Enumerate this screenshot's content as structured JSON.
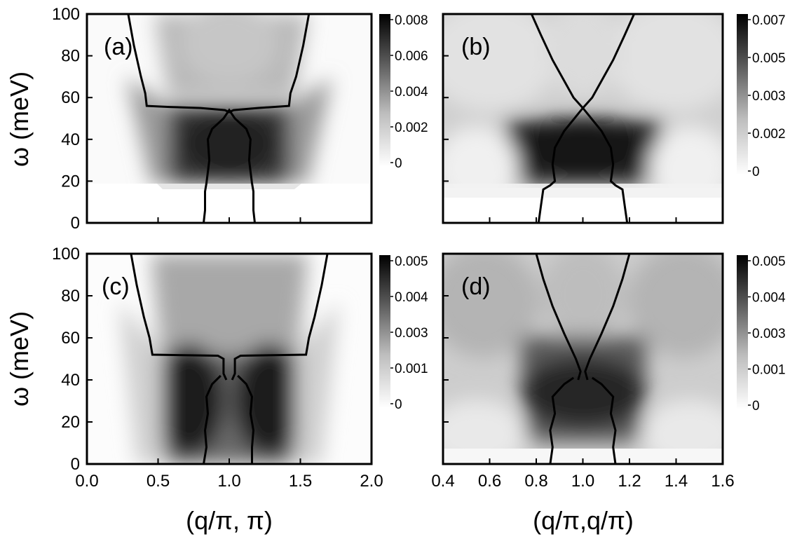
{
  "figure": {
    "ylabel": "ω (meV)",
    "xlabel_left": "(q/π, π)",
    "xlabel_right": "(q/π,q/π)"
  },
  "chart_data": [
    {
      "type": "heatmap",
      "panel_label": "(a)",
      "xlabel": "",
      "ylabel": "ω (meV)",
      "xlim": [
        0.0,
        2.0
      ],
      "ylim": [
        0,
        100
      ],
      "x_ticks": [
        "0.0",
        "0.5",
        "1.0",
        "1.5",
        "2.0"
      ],
      "y_ticks": [
        "0",
        "20",
        "40",
        "60",
        "80",
        "100"
      ],
      "colorbar": {
        "range": [
          0,
          0.008
        ],
        "ticks": [
          "0",
          "0.002",
          "0.004",
          "0.006",
          "0.008"
        ]
      },
      "contour_outer": [
        [
          0.29,
          100
        ],
        [
          0.33,
          85
        ],
        [
          0.38,
          70
        ],
        [
          0.41,
          62
        ],
        [
          0.42,
          56
        ],
        [
          0.58,
          55.5
        ],
        [
          0.8,
          55
        ],
        [
          0.97,
          54
        ],
        [
          1.0,
          53
        ],
        [
          1.03,
          54
        ],
        [
          1.2,
          55
        ],
        [
          1.42,
          56
        ],
        [
          1.43,
          62
        ],
        [
          1.47,
          70
        ],
        [
          1.52,
          85
        ],
        [
          1.56,
          100
        ]
      ],
      "contour_inner": [
        [
          0.82,
          0
        ],
        [
          0.83,
          6
        ],
        [
          0.83,
          15
        ],
        [
          0.84,
          19
        ],
        [
          0.86,
          30
        ],
        [
          0.85,
          40
        ],
        [
          0.88,
          45
        ],
        [
          0.96,
          50
        ],
        [
          1.0,
          54
        ],
        [
          1.04,
          50
        ],
        [
          1.12,
          45
        ],
        [
          1.15,
          40
        ],
        [
          1.14,
          30
        ],
        [
          1.16,
          19
        ],
        [
          1.17,
          15
        ],
        [
          1.17,
          6
        ],
        [
          1.18,
          0
        ]
      ]
    },
    {
      "type": "heatmap",
      "panel_label": "(b)",
      "xlabel": "",
      "ylabel": "",
      "xlim": [
        0.4,
        1.6
      ],
      "ylim": [
        0,
        100
      ],
      "x_ticks": [],
      "y_ticks": [],
      "colorbar": {
        "range": [
          0,
          0.007
        ],
        "ticks": [
          "0",
          "0.002",
          "0.003",
          "0.005",
          "0.007"
        ]
      },
      "contour_outer": [
        [
          0.78,
          100
        ],
        [
          0.82,
          90
        ],
        [
          0.87,
          78
        ],
        [
          0.92,
          68
        ],
        [
          0.96,
          60
        ],
        [
          1.0,
          55
        ],
        [
          1.04,
          60
        ],
        [
          1.08,
          68
        ],
        [
          1.13,
          78
        ],
        [
          1.18,
          90
        ],
        [
          1.22,
          100
        ]
      ],
      "contour_inner": [
        [
          0.81,
          0
        ],
        [
          0.82,
          8
        ],
        [
          0.83,
          16
        ],
        [
          0.86,
          18
        ],
        [
          0.88,
          20
        ],
        [
          0.87,
          28
        ],
        [
          0.88,
          36
        ],
        [
          0.92,
          44
        ],
        [
          1.0,
          55
        ],
        [
          1.08,
          44
        ],
        [
          1.12,
          36
        ],
        [
          1.13,
          28
        ],
        [
          1.12,
          20
        ],
        [
          1.14,
          18
        ],
        [
          1.17,
          16
        ],
        [
          1.18,
          8
        ],
        [
          1.19,
          0
        ]
      ]
    },
    {
      "type": "heatmap",
      "panel_label": "(c)",
      "xlabel": "(q/π, π)",
      "ylabel": "ω (meV)",
      "xlim": [
        0.0,
        2.0
      ],
      "ylim": [
        0,
        100
      ],
      "x_ticks": [
        "0.0",
        "0.5",
        "1.0",
        "1.5",
        "2.0"
      ],
      "y_ticks": [
        "0",
        "20",
        "40",
        "60",
        "80",
        "100"
      ],
      "colorbar": {
        "range": [
          0,
          0.005
        ],
        "ticks": [
          "0",
          "0.001",
          "0.003",
          "0.004",
          "0.005"
        ]
      },
      "contour_outer": [
        [
          0.31,
          100
        ],
        [
          0.35,
          85
        ],
        [
          0.4,
          70
        ],
        [
          0.44,
          60
        ],
        [
          0.46,
          52
        ],
        [
          0.92,
          51.5
        ],
        [
          0.96,
          50
        ],
        [
          0.96,
          43
        ],
        [
          0.98,
          40
        ]
      ],
      "contour_outer_right": [
        [
          1.69,
          100
        ],
        [
          1.65,
          85
        ],
        [
          1.6,
          70
        ],
        [
          1.56,
          60
        ],
        [
          1.54,
          52
        ],
        [
          1.08,
          51.5
        ],
        [
          1.04,
          50
        ],
        [
          1.04,
          43
        ],
        [
          1.02,
          40
        ]
      ],
      "contour_inner": [
        [
          0.82,
          0
        ],
        [
          0.84,
          8
        ],
        [
          0.83,
          16
        ],
        [
          0.85,
          24
        ],
        [
          0.84,
          32
        ],
        [
          0.88,
          38
        ],
        [
          0.94,
          42
        ]
      ],
      "contour_inner_right": [
        [
          1.16,
          0
        ],
        [
          1.16,
          8
        ],
        [
          1.17,
          16
        ],
        [
          1.15,
          24
        ],
        [
          1.16,
          32
        ],
        [
          1.12,
          38
        ],
        [
          1.06,
          42
        ]
      ]
    },
    {
      "type": "heatmap",
      "panel_label": "(d)",
      "xlabel": "(q/π,q/π)",
      "ylabel": "",
      "xlim": [
        0.4,
        1.6
      ],
      "ylim": [
        0,
        100
      ],
      "x_ticks": [
        "0.4",
        "0.6",
        "0.8",
        "1.0",
        "1.2",
        "1.4",
        "1.6"
      ],
      "y_ticks": [],
      "colorbar": {
        "range": [
          0,
          0.005
        ],
        "ticks": [
          "0",
          "0.001",
          "0.003",
          "0.004",
          "0.005"
        ]
      },
      "contour_outer": [
        [
          0.8,
          100
        ],
        [
          0.83,
          88
        ],
        [
          0.87,
          75
        ],
        [
          0.92,
          62
        ],
        [
          0.97,
          50
        ],
        [
          0.99,
          44
        ],
        [
          0.98,
          40
        ]
      ],
      "contour_outer_right": [
        [
          1.2,
          100
        ],
        [
          1.17,
          88
        ],
        [
          1.13,
          75
        ],
        [
          1.08,
          62
        ],
        [
          1.03,
          50
        ],
        [
          1.01,
          44
        ],
        [
          1.02,
          40
        ]
      ],
      "contour_inner": [
        [
          0.86,
          0
        ],
        [
          0.87,
          8
        ],
        [
          0.86,
          16
        ],
        [
          0.88,
          24
        ],
        [
          0.87,
          32
        ],
        [
          0.92,
          38
        ],
        [
          0.96,
          41
        ]
      ],
      "contour_inner_right": [
        [
          1.14,
          0
        ],
        [
          1.13,
          8
        ],
        [
          1.14,
          16
        ],
        [
          1.12,
          24
        ],
        [
          1.13,
          32
        ],
        [
          1.08,
          38
        ],
        [
          1.04,
          41
        ]
      ]
    }
  ]
}
